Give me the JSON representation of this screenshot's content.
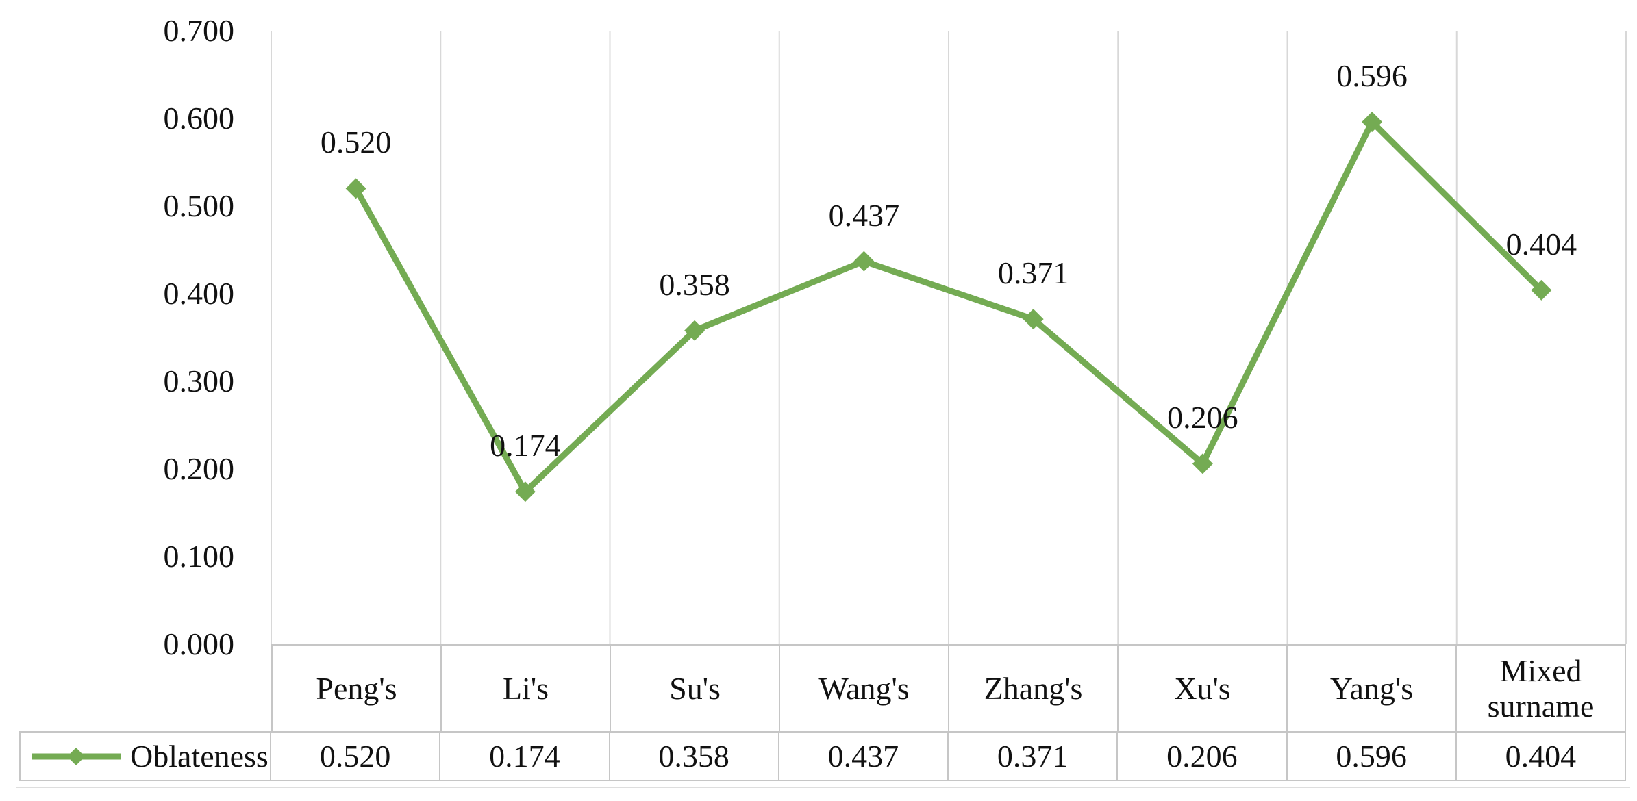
{
  "chart_data": {
    "type": "line",
    "title": "",
    "categories": [
      "Peng's",
      "Li's",
      "Su's",
      "Wang's",
      "Zhang's",
      "Xu's",
      "Yang's",
      "Mixed surname"
    ],
    "series": [
      {
        "name": "Oblateness",
        "values": [
          0.52,
          0.174,
          0.358,
          0.437,
          0.371,
          0.206,
          0.596,
          0.404
        ]
      }
    ],
    "value_labels": [
      "0.520",
      "0.174",
      "0.358",
      "0.437",
      "0.371",
      "0.206",
      "0.596",
      "0.404"
    ],
    "y_tick_labels": [
      "0.700",
      "0.600",
      "0.500",
      "0.400",
      "0.300",
      "0.200",
      "0.100",
      "0.000"
    ],
    "ylim": [
      0.0,
      0.7
    ],
    "grid": "vertical-only",
    "legend_position": "data-table-left",
    "marker": "diamond",
    "colors": {
      "series_line": "#74AB53",
      "gridline": "#D8D8D8",
      "table_border": "#C6C6C6",
      "text": "#111111"
    }
  },
  "legend": {
    "label": "Oblateness"
  }
}
